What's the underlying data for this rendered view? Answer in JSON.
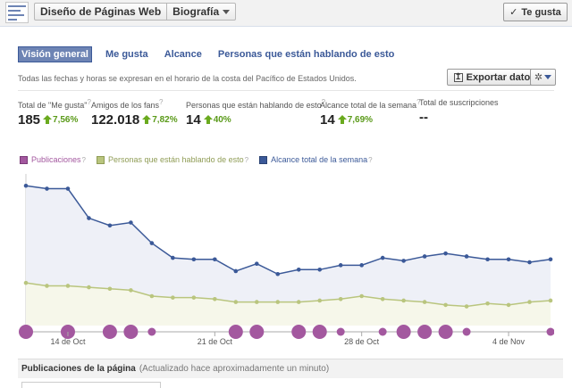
{
  "topbar": {
    "page_name": "Diseño de Páginas Web",
    "section": "Biografía",
    "like_button": "Te gusta"
  },
  "tabs": [
    {
      "label": "Visión general",
      "active": true
    },
    {
      "label": "Me gusta",
      "active": false
    },
    {
      "label": "Alcance",
      "active": false
    },
    {
      "label": "Personas que están hablando de esto",
      "active": false
    }
  ],
  "timezone_note": "Todas las fechas y horas se expresan en el horario de la costa del Pacífico de Estados Unidos.",
  "export_button": "Exportar datos",
  "stats": [
    {
      "label": "Total de \"Me gusta\"",
      "value": "185",
      "change": "7,56%"
    },
    {
      "label": "Amigos de los fans",
      "value": "122.018",
      "change": "7,82%"
    },
    {
      "label": "Personas que están hablando de esto",
      "value": "14",
      "change": "40%"
    },
    {
      "label": "Alcance total de la semana",
      "value": "14",
      "change": "7,69%"
    },
    {
      "label": "Total de suscripciones",
      "value": "--",
      "change": ""
    }
  ],
  "legend": [
    {
      "label": "Publicaciones",
      "color": "#a3589f"
    },
    {
      "label": "Personas que están hablando de esto",
      "color": "#b9c57e"
    },
    {
      "label": "Alcance total de la semana",
      "color": "#3b5998"
    }
  ],
  "chart_data": {
    "type": "line",
    "x_tick_labels": [
      "14 de Oct",
      "21 de Oct",
      "28 de Oct",
      "4 de Nov"
    ],
    "series": [
      {
        "name": "Alcance total de la semana",
        "color": "#3b5998",
        "fill": "#eef0f7",
        "values": [
          95,
          93,
          93,
          73,
          68,
          70,
          56,
          46,
          45,
          45,
          37,
          42,
          35,
          38,
          38,
          41,
          41,
          46,
          44,
          47,
          49,
          47,
          45,
          45,
          43,
          45
        ]
      },
      {
        "name": "Personas que están hablando de esto",
        "color": "#b9c57e",
        "fill": "#f6f7ea",
        "values": [
          29,
          27,
          27,
          26,
          25,
          24,
          20,
          19,
          19,
          18,
          16,
          16,
          16,
          16,
          17,
          18,
          20,
          18,
          17,
          16,
          14,
          13,
          15,
          14,
          16,
          17
        ]
      },
      {
        "name": "Publicaciones",
        "color": "#a3589f",
        "posts": [
          {
            "day": 0,
            "size": "large"
          },
          {
            "day": 2,
            "size": "large"
          },
          {
            "day": 4,
            "size": "large"
          },
          {
            "day": 5,
            "size": "large"
          },
          {
            "day": 6,
            "size": "small"
          },
          {
            "day": 10,
            "size": "large"
          },
          {
            "day": 11,
            "size": "large"
          },
          {
            "day": 13,
            "size": "large"
          },
          {
            "day": 14,
            "size": "large"
          },
          {
            "day": 15,
            "size": "small"
          },
          {
            "day": 17,
            "size": "small"
          },
          {
            "day": 18,
            "size": "large"
          },
          {
            "day": 19,
            "size": "large"
          },
          {
            "day": 20,
            "size": "large"
          },
          {
            "day": 21,
            "size": "small"
          },
          {
            "day": 25,
            "size": "small"
          }
        ]
      }
    ],
    "x_tick_days": [
      2,
      9,
      16,
      23
    ],
    "ylim": [
      0,
      100
    ],
    "grid": false
  },
  "posts_section": {
    "title": "Publicaciones de la página",
    "updated": "(Actualizado hace aproximadamente un minuto)"
  }
}
